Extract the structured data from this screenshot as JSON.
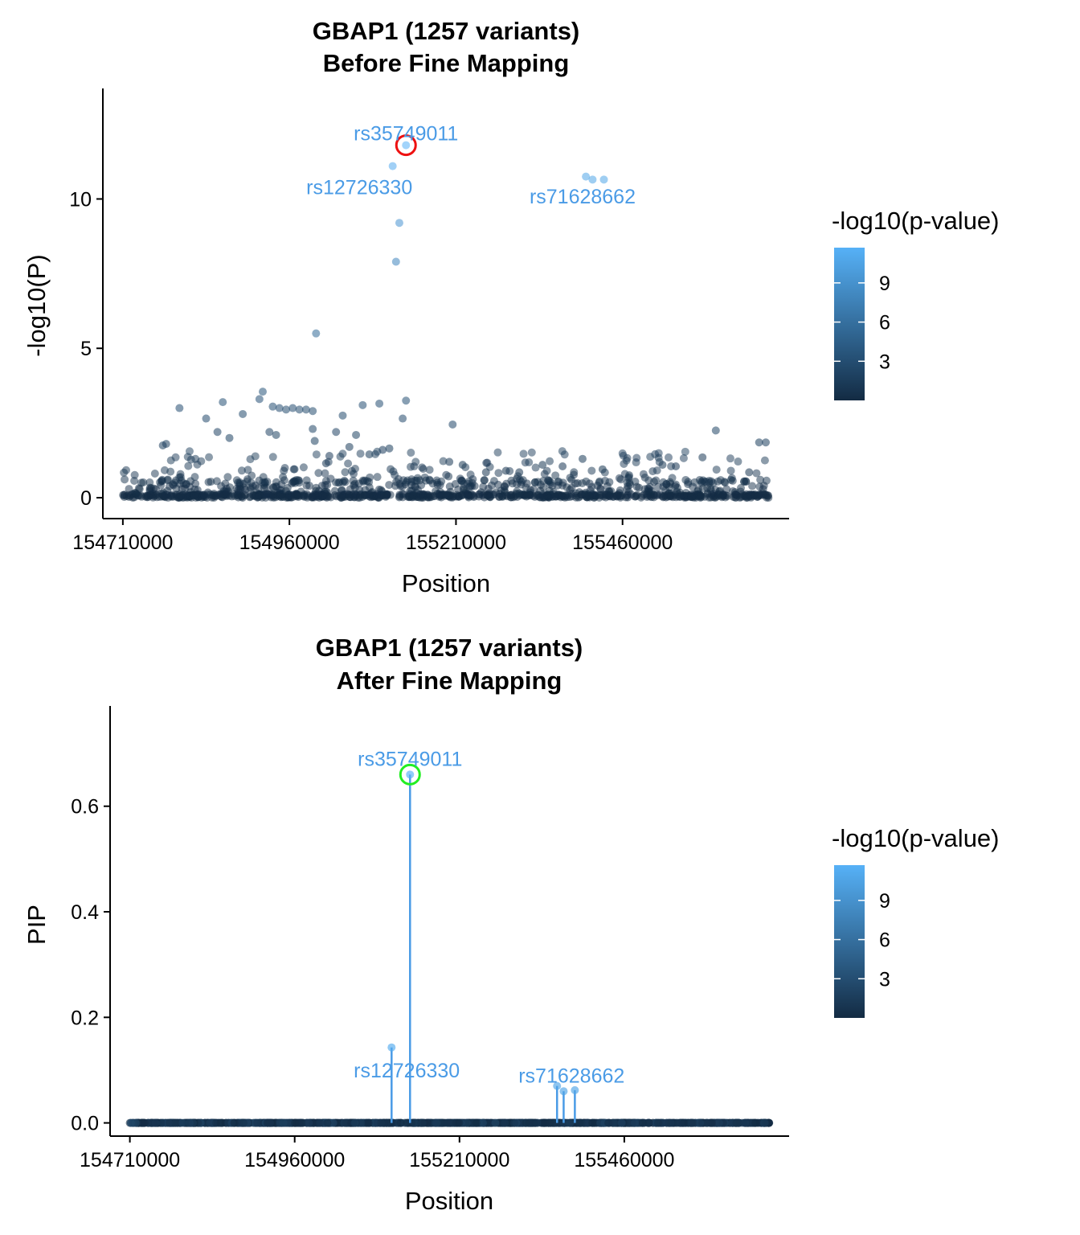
{
  "colors": {
    "low": "#132B43",
    "high": "#56B1F7",
    "lead_circle_before": "#ee1111",
    "lead_circle_after": "#22ee22",
    "label": "#4a9be6"
  },
  "chart_data": [
    {
      "type": "scatter",
      "title": "GBAP1 (1257 variants)",
      "subtitle": "Before Fine Mapping",
      "xlabel": "Position",
      "ylabel": "-log10(P)",
      "xlim": [
        154680000,
        155710000
      ],
      "ylim": [
        -0.7,
        13.7
      ],
      "x_ticks": [
        154710000,
        154960000,
        155210000,
        155460000
      ],
      "x_tick_labels": [
        "154710000",
        "154960000",
        "155210000",
        "155460000"
      ],
      "y_ticks": [
        0,
        5,
        10
      ],
      "y_tick_labels": [
        "0",
        "5",
        "10"
      ],
      "grid": false,
      "legend": {
        "title": "-log10(p-value)",
        "position": "right",
        "ticks": [
          3,
          6,
          9
        ],
        "tick_labels": [
          "3",
          "6",
          "9"
        ],
        "range": [
          0,
          11.7
        ]
      },
      "n_variants": 1257,
      "lead_variant": "rs35749011",
      "labels": [
        {
          "text": "rs35749011",
          "x": 155135000,
          "y": 12.2
        },
        {
          "text": "rs12726330",
          "x": 155065000,
          "y": 10.4
        },
        {
          "text": "rs71628662",
          "x": 155400000,
          "y": 10.1
        }
      ],
      "highlight": {
        "x": 155135000,
        "y": 11.8
      },
      "points": [
        [
          155135000,
          11.8
        ],
        [
          155115000,
          11.1
        ],
        [
          155405000,
          10.75
        ],
        [
          155415000,
          10.65
        ],
        [
          155432000,
          10.65
        ],
        [
          155125000,
          9.2
        ],
        [
          155120000,
          7.9
        ],
        [
          155000000,
          5.5
        ],
        [
          154920000,
          3.55
        ],
        [
          154915000,
          3.3
        ],
        [
          154860000,
          3.2
        ],
        [
          154852000,
          2.2
        ],
        [
          154795000,
          3.0
        ],
        [
          154835000,
          2.65
        ],
        [
          154890000,
          2.8
        ],
        [
          154935000,
          3.05
        ],
        [
          154945000,
          3.0
        ],
        [
          154955000,
          2.95
        ],
        [
          154965000,
          3.0
        ],
        [
          154975000,
          2.95
        ],
        [
          154985000,
          2.95
        ],
        [
          154995000,
          2.9
        ],
        [
          155070000,
          3.1
        ],
        [
          155095000,
          3.15
        ],
        [
          155135000,
          3.25
        ],
        [
          155130000,
          2.65
        ],
        [
          155040000,
          2.75
        ],
        [
          155060000,
          2.1
        ],
        [
          155030000,
          2.2
        ],
        [
          155205000,
          2.45
        ],
        [
          155665000,
          1.85
        ],
        [
          155675000,
          1.85
        ],
        [
          155600000,
          2.25
        ],
        [
          154930000,
          2.2
        ],
        [
          154940000,
          2.1
        ],
        [
          154995000,
          2.3
        ],
        [
          154998000,
          1.9
        ],
        [
          154775000,
          1.8
        ],
        [
          154770000,
          1.75
        ],
        [
          154870000,
          2.0
        ],
        [
          155110000,
          1.65
        ],
        [
          155100000,
          1.6
        ],
        [
          155080000,
          1.45
        ],
        [
          155050000,
          1.7
        ],
        [
          155020000,
          1.4
        ],
        [
          155015000,
          1.15
        ],
        [
          155200000,
          1.2
        ],
        [
          155220000,
          1.1
        ],
        [
          155370000,
          1.05
        ],
        [
          155400000,
          1.3
        ],
        [
          155520000,
          1.1
        ],
        [
          155580000,
          1.35
        ],
        [
          155540000,
          1.05
        ],
        [
          155340000,
          1.1
        ],
        [
          155305000,
          0.85
        ],
        [
          155430000,
          0.95
        ],
        [
          155470000,
          0.75
        ],
        [
          155650000,
          0.85
        ],
        [
          155285000,
          0.9
        ],
        [
          155255000,
          0.85
        ]
      ]
    },
    {
      "type": "scatter",
      "title": "GBAP1 (1257 variants)",
      "subtitle": "After Fine Mapping",
      "xlabel": "Position",
      "ylabel": "PIP",
      "xlim": [
        154680000,
        155710000
      ],
      "ylim": [
        -0.025,
        0.79
      ],
      "x_ticks": [
        154710000,
        154960000,
        155210000,
        155460000
      ],
      "x_tick_labels": [
        "154710000",
        "154960000",
        "155210000",
        "155460000"
      ],
      "y_ticks": [
        0.0,
        0.2,
        0.4,
        0.6
      ],
      "y_tick_labels": [
        "0.0",
        "0.2",
        "0.4",
        "0.6"
      ],
      "grid": false,
      "legend": {
        "title": "-log10(p-value)",
        "position": "right",
        "ticks": [
          3,
          6,
          9
        ],
        "tick_labels": [
          "3",
          "6",
          "9"
        ],
        "range": [
          0,
          11.7
        ]
      },
      "lead_variant": "rs35749011",
      "labels": [
        {
          "text": "rs35749011",
          "x": 155135000,
          "y": 0.69
        },
        {
          "text": "rs12726330",
          "x": 155130000,
          "y": 0.1
        },
        {
          "text": "rs71628662",
          "x": 155380000,
          "y": 0.09
        }
      ],
      "highlight": {
        "x": 155135000,
        "y": 0.66
      },
      "stems": [
        {
          "x": 155107000,
          "y": 0.143,
          "logp": 11.1
        },
        {
          "x": 155135000,
          "y": 0.66,
          "logp": 11.8
        },
        {
          "x": 155358000,
          "y": 0.07,
          "logp": 10.75
        },
        {
          "x": 155368000,
          "y": 0.06,
          "logp": 10.65
        },
        {
          "x": 155385000,
          "y": 0.062,
          "logp": 10.65
        }
      ]
    }
  ]
}
